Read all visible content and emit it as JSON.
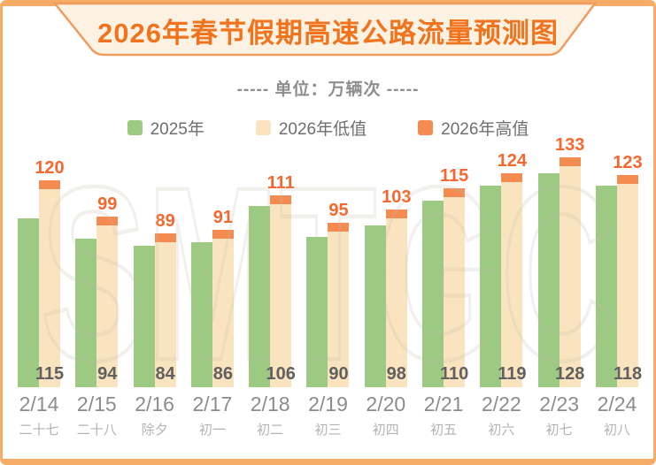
{
  "banner": {
    "title": "2026年春节假期高速公路流量预测图"
  },
  "subtitle": "----- 单位：万辆次 -----",
  "legend": [
    {
      "label": "2025年",
      "color": "#9CCA82"
    },
    {
      "label": "2026年低值",
      "color": "#F9E4BF"
    },
    {
      "label": "2026年高值",
      "color": "#F48B51"
    }
  ],
  "watermark": "SMTGC",
  "colors": {
    "frame": "#F6AC66",
    "banner_fill": "#FCF2E3",
    "banner_border": "#EF9C5D",
    "title": "#F0731E",
    "subtitle": "#8E8E8E",
    "legend_text": "#6E6E6E",
    "green": "#9CCA82",
    "cream": "#F9E4BF",
    "cap": "#F48B51",
    "high_label": "#F3682E",
    "low_label": "#606060",
    "date_label": "#8C8C8C",
    "lunar_label": "#B3B3B3"
  },
  "chart_data": {
    "type": "bar",
    "title": "2026年春节假期高速公路流量预测图",
    "unit_label": "单位：万辆次",
    "categories": [
      "2/14",
      "2/15",
      "2/16",
      "2/17",
      "2/18",
      "2/19",
      "2/20",
      "2/21",
      "2/22",
      "2/23",
      "2/24"
    ],
    "lunar_labels": [
      "二十七",
      "二十八",
      "除夕",
      "初一",
      "初二",
      "初三",
      "初四",
      "初五",
      "初六",
      "初七",
      "初八"
    ],
    "series": [
      {
        "name": "2025年",
        "color": "#9CCA82",
        "values": [
          98,
          86,
          82,
          84,
          105,
          87,
          94,
          108,
          117,
          124,
          117
        ],
        "values_estimated_from_bar_heights": true
      },
      {
        "name": "2026年低值",
        "color": "#F9E4BF",
        "values": [
          115,
          94,
          84,
          86,
          106,
          90,
          98,
          110,
          119,
          128,
          118
        ]
      },
      {
        "name": "2026年高值",
        "color": "#F48B51",
        "values": [
          120,
          99,
          89,
          91,
          111,
          95,
          103,
          115,
          124,
          133,
          123
        ]
      }
    ],
    "value_labels": {
      "high_series_labels": "orange, above each bar stack",
      "low_series_labels": "gray, inside bottom of each bar stack"
    },
    "ylim": [
      0,
      140
    ],
    "grid": false,
    "legend_position": "top",
    "bar_style": "2026 low value drawn as cream column with orange cap extending from low to high value; 2025 drawn as adjacent green column"
  }
}
